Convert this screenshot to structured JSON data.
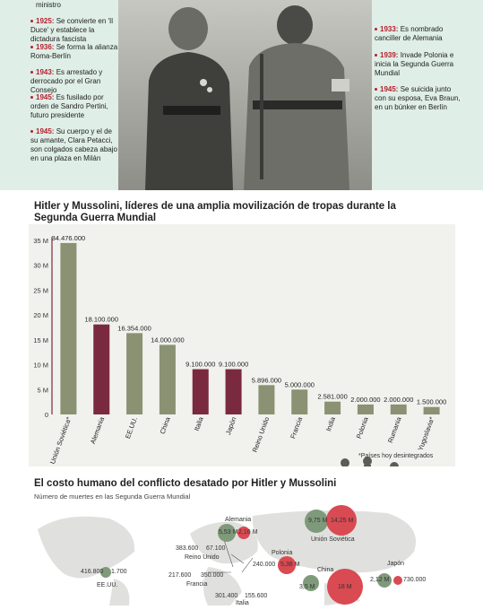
{
  "timeline_left": [
    {
      "text": "ministro"
    },
    {
      "year": "1925:",
      "text": "Se convierte en 'Il Duce' y establece la dictadura fascista"
    },
    {
      "year": "1936:",
      "text": "Se forma la alianza Roma-Berlín"
    },
    {
      "year": "1943:",
      "text": "Es arrestado y derrocado por el Gran Consejo"
    },
    {
      "year": "1945:",
      "text": "Es fusilado por orden de Sandro Pertini, futuro presidente"
    },
    {
      "year": "1945:",
      "text": "Su cuerpo y el de su amante, Clara Petacci, son colgados cabeza abajo en una plaza en Milán"
    }
  ],
  "timeline_right": [
    {
      "year": "1933:",
      "text": "Es nombrado canciller de Alemania"
    },
    {
      "year": "1939:",
      "text": "Invade Polonia e inicia la Segunda Guerra Mundial"
    },
    {
      "year": "1945:",
      "text": "Se suicida junto con su esposa, Eva Braun, en un búnker en Berlín"
    }
  ],
  "chart_data": {
    "type": "bar",
    "title": "Hitler y Mussolini, líderes de una amplia movilización de tropas durante la Segunda Guerra Mundial",
    "categories": [
      "Unión Soviética*",
      "Alemania",
      "EE.UU.",
      "China",
      "Italia",
      "Japón",
      "Reino Unido",
      "Francia",
      "India",
      "Polonia",
      "Rumania",
      "Yugoslavia*"
    ],
    "values": [
      34476000,
      18100000,
      16354000,
      14000000,
      9100000,
      9100000,
      5896000,
      5000000,
      2581000,
      2000000,
      2000000,
      1500000
    ],
    "value_labels": [
      "34.476.000",
      "18.100.000",
      "16.354.000",
      "14.000.000",
      "9.100.000",
      "9.100.000",
      "5.896.000",
      "5.000.000",
      "2.581.000",
      "2.000.000",
      "2.000.000",
      "1.500.000"
    ],
    "highlight": [
      "Alemania",
      "Italia",
      "Japón"
    ],
    "ylim": [
      0,
      35000000
    ],
    "yticks": [
      "0",
      "5 M",
      "10 M",
      "15 M",
      "20 M",
      "25 M",
      "30 M",
      "35 M"
    ],
    "footnote": "*Países hoy desintegrados",
    "colors": {
      "default": "#8a9273",
      "axis": "#7a2a3e"
    }
  },
  "section2": {
    "title": "El costo humano del conflicto desatado por Hitler y Mussolini",
    "subtitle": "Número de muertes en las Segunda Guerra Mundial"
  },
  "map_labels": [
    {
      "key": "alemania",
      "text": "Alemania"
    },
    {
      "key": "alemania_v1",
      "text": "5,53 M"
    },
    {
      "key": "alemania_v2",
      "text": "2,16 M"
    },
    {
      "key": "urss_v1",
      "text": "9,75 M"
    },
    {
      "key": "urss_v2",
      "text": "14,25 M"
    },
    {
      "key": "urss",
      "text": "Unión Soviética"
    },
    {
      "key": "ru_v1",
      "text": "383.600"
    },
    {
      "key": "ru_v2",
      "text": "67.100"
    },
    {
      "key": "ru",
      "text": "Reino Unido"
    },
    {
      "key": "polonia",
      "text": "Polonia"
    },
    {
      "key": "polonia_v1",
      "text": "240.000"
    },
    {
      "key": "polonia_v2",
      "text": "5,38 M"
    },
    {
      "key": "eeuu_v1",
      "text": "416.800"
    },
    {
      "key": "eeuu_v2",
      "text": "1.700"
    },
    {
      "key": "eeuu",
      "text": "EE.UU."
    },
    {
      "key": "francia_v1",
      "text": "217.600"
    },
    {
      "key": "francia_v2",
      "text": "350.000"
    },
    {
      "key": "francia",
      "text": "Francia"
    },
    {
      "key": "china",
      "text": "China"
    },
    {
      "key": "china_v1",
      "text": "3,5 M"
    },
    {
      "key": "china_v2",
      "text": "18 M"
    },
    {
      "key": "japon",
      "text": "Japón"
    },
    {
      "key": "japon_v1",
      "text": "2,12 M"
    },
    {
      "key": "japon_v2",
      "text": "730.000"
    },
    {
      "key": "italia_v1",
      "text": "301.400"
    },
    {
      "key": "italia_v2",
      "text": "155.600"
    },
    {
      "key": "italia",
      "text": "Italia"
    }
  ],
  "colors": {
    "accent": "#b51f2e",
    "military": "#7f9a7a",
    "civilian": "#d94a52",
    "band": "#dfeee6"
  }
}
